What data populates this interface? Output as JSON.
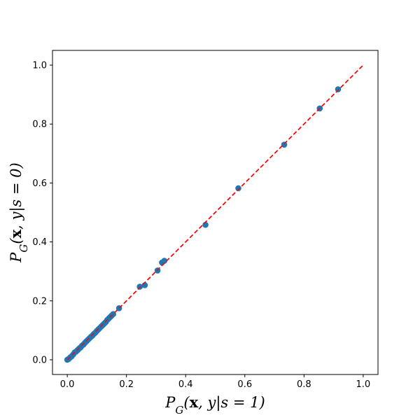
{
  "chart_data": {
    "type": "scatter",
    "title": "",
    "xlabel": "P_G(x, y|s = 1)",
    "ylabel": "P_G(x, y|s = 0)",
    "xlim": [
      -0.05,
      1.05
    ],
    "ylim": [
      -0.05,
      1.05
    ],
    "x_ticks": [
      0.0,
      0.2,
      0.4,
      0.6,
      0.8,
      1.0
    ],
    "y_ticks": [
      0.0,
      0.2,
      0.4,
      0.6,
      0.8,
      1.0
    ],
    "x_tick_labels": [
      "0.0",
      "0.2",
      "0.4",
      "0.6",
      "0.8",
      "1.0"
    ],
    "y_tick_labels": [
      "0.0",
      "0.2",
      "0.4",
      "0.6",
      "0.8",
      "1.0"
    ],
    "grid": false,
    "colors": {
      "points": "#1f77b4",
      "reference_line": "#ff0000",
      "axes": "#000000"
    },
    "series": [
      {
        "points": [
          [
            0.0,
            0.0
          ],
          [
            0.005,
            0.003
          ],
          [
            0.01,
            0.008
          ],
          [
            0.015,
            0.012
          ],
          [
            0.02,
            0.018
          ],
          [
            0.025,
            0.025
          ],
          [
            0.03,
            0.028
          ],
          [
            0.035,
            0.033
          ],
          [
            0.04,
            0.038
          ],
          [
            0.045,
            0.042
          ],
          [
            0.05,
            0.048
          ],
          [
            0.055,
            0.052
          ],
          [
            0.06,
            0.058
          ],
          [
            0.065,
            0.063
          ],
          [
            0.07,
            0.068
          ],
          [
            0.075,
            0.073
          ],
          [
            0.08,
            0.078
          ],
          [
            0.085,
            0.082
          ],
          [
            0.09,
            0.088
          ],
          [
            0.095,
            0.092
          ],
          [
            0.1,
            0.098
          ],
          [
            0.105,
            0.103
          ],
          [
            0.11,
            0.108
          ],
          [
            0.115,
            0.113
          ],
          [
            0.12,
            0.118
          ],
          [
            0.125,
            0.123
          ],
          [
            0.13,
            0.128
          ],
          [
            0.135,
            0.135
          ],
          [
            0.14,
            0.14
          ],
          [
            0.145,
            0.145
          ],
          [
            0.15,
            0.15
          ],
          [
            0.155,
            0.155
          ],
          [
            0.175,
            0.175
          ],
          [
            0.245,
            0.248
          ],
          [
            0.262,
            0.253
          ],
          [
            0.305,
            0.303
          ],
          [
            0.32,
            0.33
          ],
          [
            0.328,
            0.336
          ],
          [
            0.467,
            0.458
          ],
          [
            0.578,
            0.582
          ],
          [
            0.733,
            0.73
          ],
          [
            0.853,
            0.853
          ],
          [
            0.915,
            0.918
          ]
        ]
      }
    ],
    "reference_line": {
      "style": "dashed",
      "from": [
        0.0,
        0.0
      ],
      "to": [
        1.0,
        1.0
      ]
    }
  }
}
